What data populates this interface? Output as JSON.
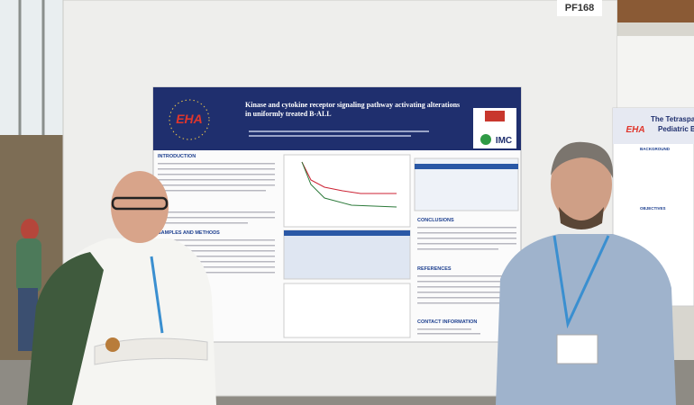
{
  "board_label": "PF168",
  "poster": {
    "title": "Kinase and cytokine receptor signaling pathway activating alterations in uniformly treated B-ALL",
    "logo_left": "EHA",
    "logo_right": "IMC",
    "sections": [
      "INTRODUCTION",
      "SAMPLES AND METHODS",
      "CONCLUSIONS",
      "REFERENCES",
      "CONTACT INFORMATION"
    ]
  },
  "neighbor_poster": {
    "title": "The Tetraspan",
    "subtitle": "Pediatric B",
    "logo": "EHA",
    "sections": [
      "BACKGROUND",
      "OBJECTIVES"
    ]
  }
}
